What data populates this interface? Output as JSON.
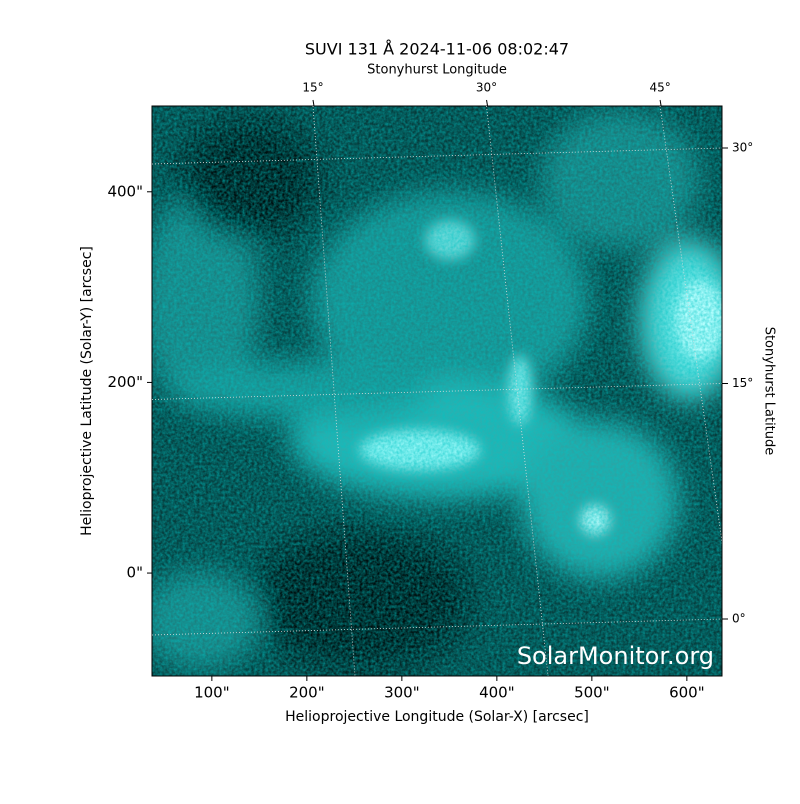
{
  "chart_data": {
    "type": "image",
    "title": "SUVI 131 Å 2024-11-06 08:02:47",
    "x_label": "Helioprojective Longitude (Solar-X) [arcsec]",
    "y_label": "Helioprojective Latitude (Solar-Y) [arcsec]",
    "top_label": "Stonyhurst Longitude",
    "right_label": "Stonyhurst Latitude",
    "watermark": "SolarMonitor.org",
    "xlim": [
      37,
      637
    ],
    "ylim": [
      -108,
      490
    ],
    "xticks": [
      {
        "value": 100,
        "label": "100\""
      },
      {
        "value": 200,
        "label": "200\""
      },
      {
        "value": 300,
        "label": "300\""
      },
      {
        "value": 400,
        "label": "400\""
      },
      {
        "value": 500,
        "label": "500\""
      },
      {
        "value": 600,
        "label": "600\""
      }
    ],
    "yticks": [
      {
        "value": 0,
        "label": "0\""
      },
      {
        "value": 200,
        "label": "200\""
      },
      {
        "value": 400,
        "label": "400\""
      }
    ],
    "lon_ticks": [
      {
        "value": 15,
        "label": "15°"
      },
      {
        "value": 30,
        "label": "30°"
      },
      {
        "value": 45,
        "label": "45°"
      }
    ],
    "lat_ticks": [
      {
        "value": 0,
        "label": "0°"
      },
      {
        "value": 15,
        "label": "15°"
      },
      {
        "value": 30,
        "label": "30°"
      }
    ],
    "grid": true
  }
}
